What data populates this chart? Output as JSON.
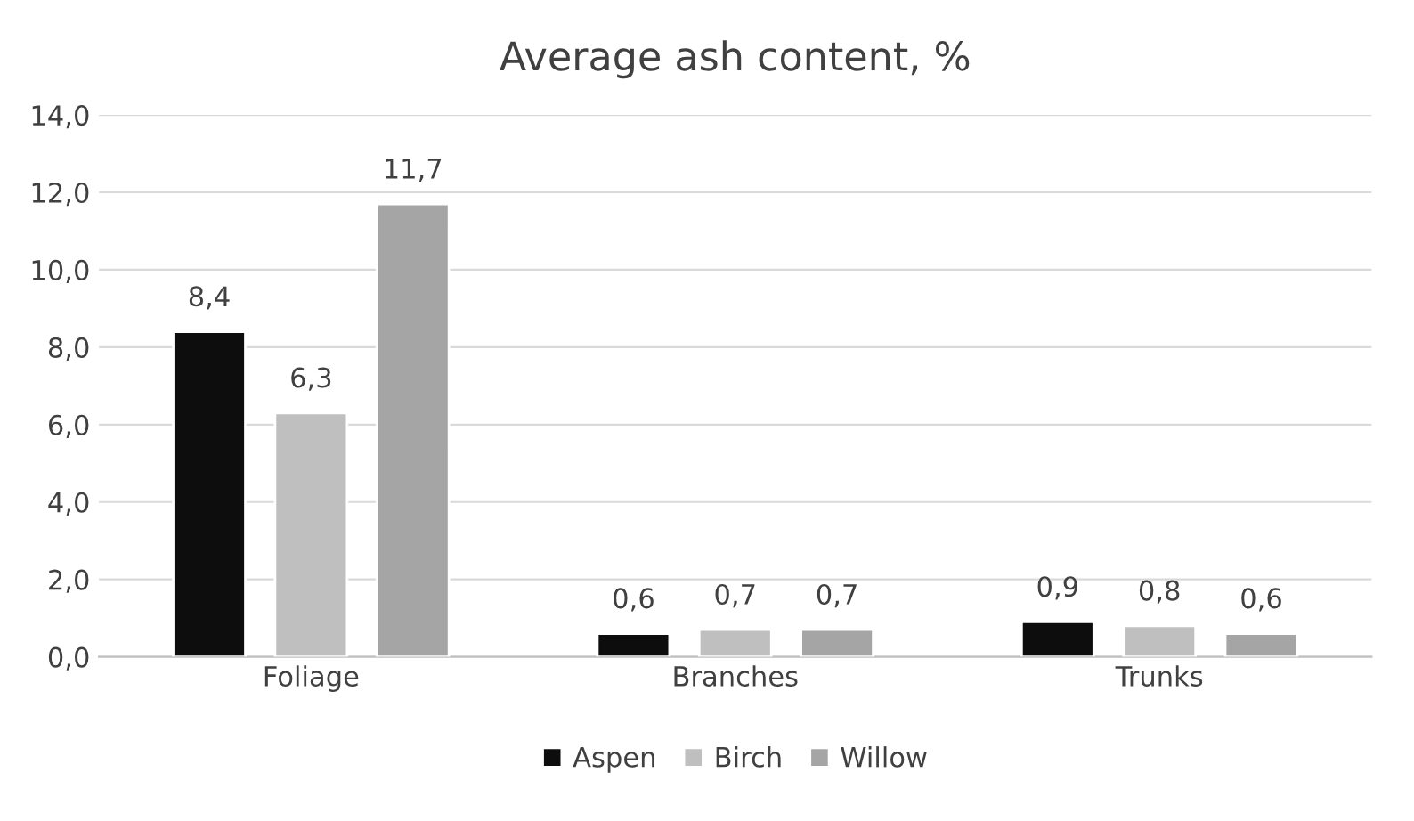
{
  "chart_data": {
    "type": "bar",
    "title": "Average ash content, %",
    "categories": [
      "Foliage",
      "Branches",
      "Trunks"
    ],
    "series": [
      {
        "name": "Aspen",
        "color": "#0d0d0d",
        "values": [
          8.4,
          0.6,
          0.9
        ],
        "value_labels": [
          "8,4",
          "0,6",
          "0,9"
        ]
      },
      {
        "name": "Birch",
        "color": "#bfbfbf",
        "values": [
          6.3,
          0.7,
          0.8
        ],
        "value_labels": [
          "6,3",
          "0,7",
          "0,8"
        ]
      },
      {
        "name": "Willow",
        "color": "#a5a5a5",
        "values": [
          11.7,
          0.7,
          0.6
        ],
        "value_labels": [
          "11,7",
          "0,7",
          "0,6"
        ]
      }
    ],
    "ylim": [
      0,
      14
    ],
    "yticks": [
      {
        "value": 0,
        "label": "0,0"
      },
      {
        "value": 2,
        "label": "2,0"
      },
      {
        "value": 4,
        "label": "4,0"
      },
      {
        "value": 6,
        "label": "6,0"
      },
      {
        "value": 8,
        "label": "8,0"
      },
      {
        "value": 10,
        "label": "10,0"
      },
      {
        "value": 12,
        "label": "12,0"
      },
      {
        "value": 14,
        "label": "14,0"
      }
    ],
    "grid": "y",
    "legend": "bottom"
  }
}
